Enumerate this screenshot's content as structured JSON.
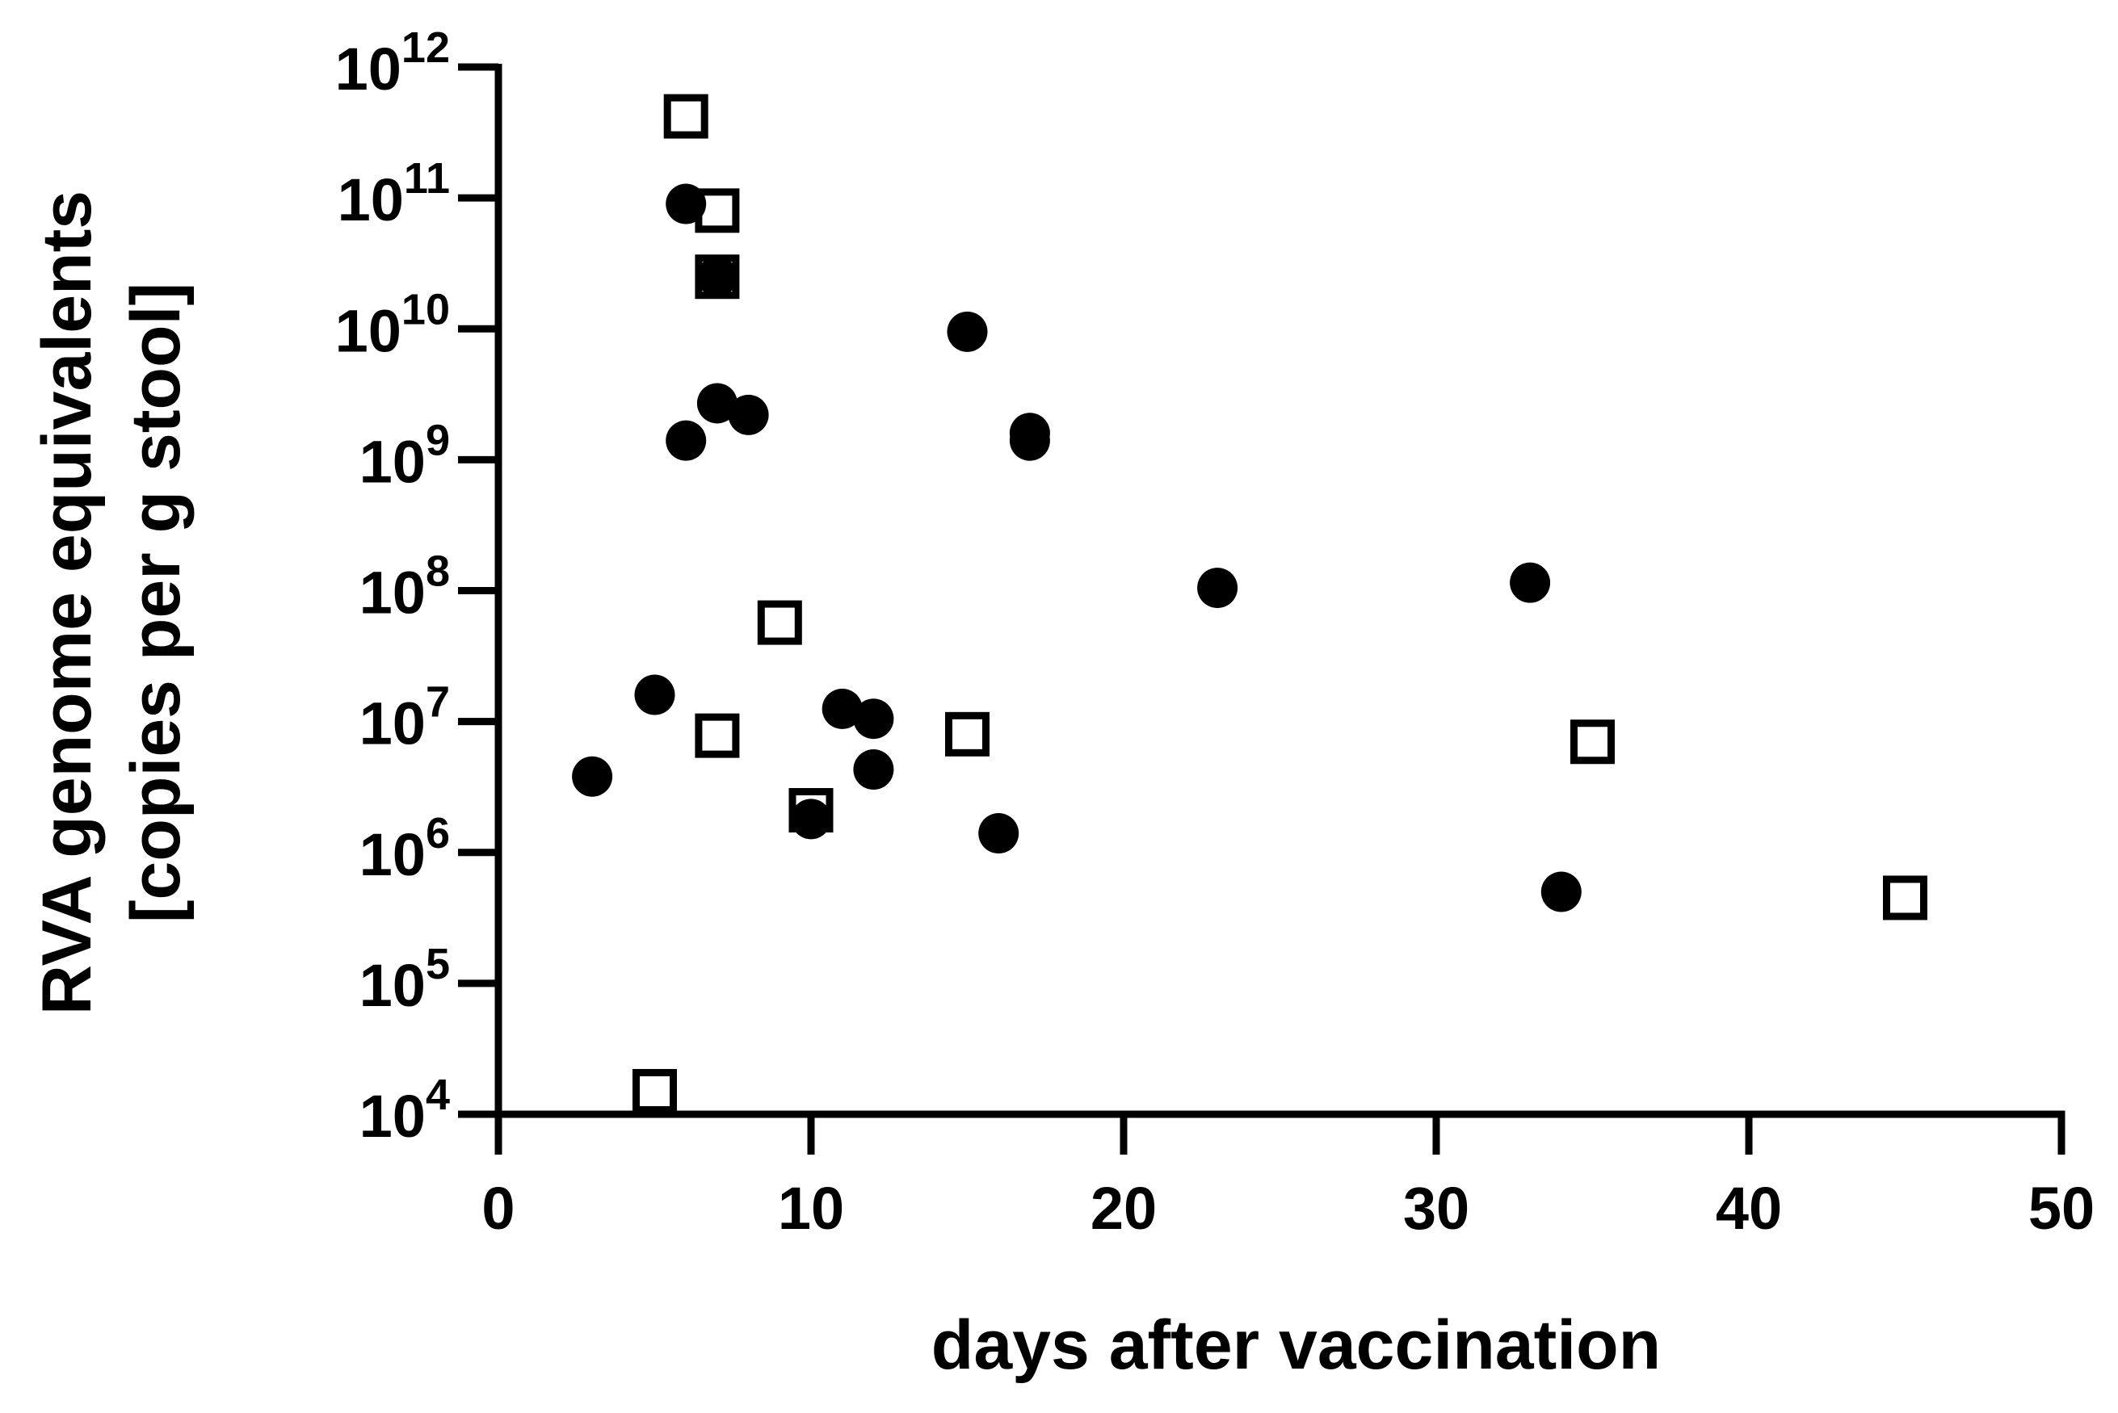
{
  "chart_data": {
    "type": "scatter",
    "title": "",
    "xlabel": "days after vaccination",
    "ylabel_line1": "RVA genome equivalents",
    "ylabel_line2": "[copies per g stool]",
    "y_scale": "log10",
    "xlim": [
      0,
      50
    ],
    "ylim": [
      10000,
      1000000000000
    ],
    "x_ticks": [
      {
        "value": 0,
        "label": "0"
      },
      {
        "value": 10,
        "label": "10"
      },
      {
        "value": 20,
        "label": "20"
      },
      {
        "value": 30,
        "label": "30"
      },
      {
        "value": 40,
        "label": "40"
      },
      {
        "value": 50,
        "label": "50"
      }
    ],
    "y_ticks": [
      {
        "exp": 4,
        "base": "10",
        "sup": "4"
      },
      {
        "exp": 5,
        "base": "10",
        "sup": "5"
      },
      {
        "exp": 6,
        "base": "10",
        "sup": "6"
      },
      {
        "exp": 7,
        "base": "10",
        "sup": "7"
      },
      {
        "exp": 8,
        "base": "10",
        "sup": "8"
      },
      {
        "exp": 9,
        "base": "10",
        "sup": "9"
      },
      {
        "exp": 10,
        "base": "10",
        "sup": "10"
      },
      {
        "exp": 11,
        "base": "10",
        "sup": "11"
      },
      {
        "exp": 12,
        "base": "10",
        "sup": "12"
      }
    ],
    "series": [
      {
        "name": "filled circles",
        "marker": "circle",
        "color": "#000000",
        "points": [
          {
            "x": 3,
            "y": 3800000
          },
          {
            "x": 5,
            "y": 16000000
          },
          {
            "x": 6,
            "y": 90000000000
          },
          {
            "x": 6,
            "y": 1400000000
          },
          {
            "x": 7,
            "y": 2700000000
          },
          {
            "x": 7,
            "y": 25000000000
          },
          {
            "x": 8,
            "y": 2200000000
          },
          {
            "x": 10,
            "y": 1800000
          },
          {
            "x": 11,
            "y": 12500000
          },
          {
            "x": 12,
            "y": 10500000
          },
          {
            "x": 12,
            "y": 4300000
          },
          {
            "x": 15,
            "y": 9500000000
          },
          {
            "x": 16,
            "y": 1400000
          },
          {
            "x": 17,
            "y": 1600000000
          },
          {
            "x": 17,
            "y": 1400000000
          },
          {
            "x": 23,
            "y": 105000000
          },
          {
            "x": 33,
            "y": 115000000
          },
          {
            "x": 34,
            "y": 500000
          }
        ]
      },
      {
        "name": "open squares",
        "marker": "square",
        "color": "#000000",
        "points": [
          {
            "x": 5,
            "y": 15000
          },
          {
            "x": 6,
            "y": 420000000000
          },
          {
            "x": 7,
            "y": 80000000000
          },
          {
            "x": 7,
            "y": 25000000000
          },
          {
            "x": 7,
            "y": 7800000
          },
          {
            "x": 9,
            "y": 57000000
          },
          {
            "x": 10,
            "y": 2100000
          },
          {
            "x": 15,
            "y": 8000000
          },
          {
            "x": 35,
            "y": 7000000
          },
          {
            "x": 45,
            "y": 450000
          }
        ]
      }
    ]
  }
}
